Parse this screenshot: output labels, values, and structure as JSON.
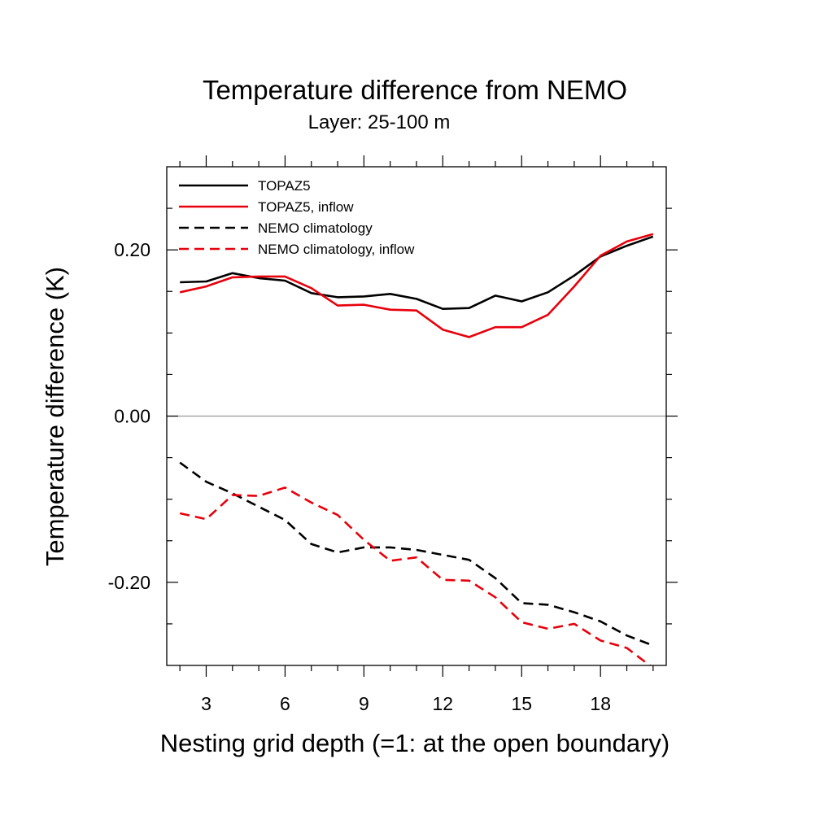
{
  "chart_data": {
    "type": "line",
    "title": "Temperature difference from NEMO",
    "subtitle": "Layer: 25-100 m",
    "xlabel": "Nesting grid depth (=1: at the open boundary)",
    "ylabel": "Temperature difference (K)",
    "xlim": [
      1.5,
      20.5
    ],
    "ylim": [
      -0.3,
      0.3
    ],
    "xticks": [
      3,
      6,
      9,
      12,
      15,
      18
    ],
    "yticks": [
      -0.2,
      0.0,
      0.2
    ],
    "ytick_labels": [
      "-0.20",
      "0.00",
      "0.20"
    ],
    "zero_line": true,
    "grid": false,
    "legend_position": "top-left",
    "x": [
      2,
      3,
      4,
      5,
      6,
      7,
      8,
      9,
      10,
      11,
      12,
      13,
      14,
      15,
      16,
      17,
      18,
      19,
      20
    ],
    "series": [
      {
        "name": "TOPAZ5",
        "color": "#000000",
        "dash": "solid",
        "values": [
          0.161,
          0.162,
          0.172,
          0.166,
          0.163,
          0.148,
          0.143,
          0.144,
          0.147,
          0.141,
          0.129,
          0.13,
          0.145,
          0.138,
          0.149,
          0.169,
          0.192,
          0.205,
          0.216
        ]
      },
      {
        "name": "TOPAZ5, inflow",
        "color": "#e8000b",
        "dash": "solid",
        "values": [
          0.149,
          0.156,
          0.167,
          0.168,
          0.168,
          0.154,
          0.133,
          0.134,
          0.128,
          0.127,
          0.104,
          0.095,
          0.107,
          0.107,
          0.122,
          0.156,
          0.193,
          0.21,
          0.219
        ]
      },
      {
        "name": "NEMO climatology",
        "color": "#000000",
        "dash": "dashed",
        "values": [
          -0.056,
          -0.079,
          -0.093,
          -0.109,
          -0.125,
          -0.154,
          -0.164,
          -0.158,
          -0.158,
          -0.161,
          -0.167,
          -0.173,
          -0.195,
          -0.225,
          -0.227,
          -0.236,
          -0.247,
          -0.264,
          -0.276
        ]
      },
      {
        "name": "NEMO climatology, inflow",
        "color": "#e8000b",
        "dash": "dashed",
        "values": [
          -0.117,
          -0.124,
          -0.095,
          -0.096,
          -0.086,
          -0.104,
          -0.119,
          -0.149,
          -0.174,
          -0.17,
          -0.197,
          -0.198,
          -0.218,
          -0.248,
          -0.256,
          -0.25,
          -0.27,
          -0.279,
          -0.303
        ]
      }
    ]
  }
}
